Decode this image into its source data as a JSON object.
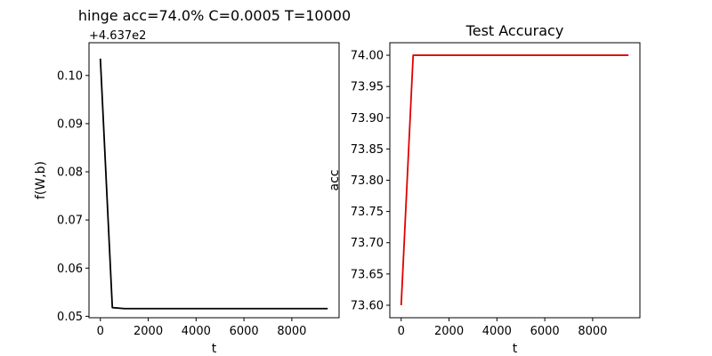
{
  "figure_title": "hinge acc=74.0% C=0.0005 T=10000",
  "chart_data": [
    {
      "type": "line",
      "title": "",
      "xlabel": "t",
      "ylabel": "f(W,b)",
      "offset_text": "+4.637e2",
      "xlim": [
        -475,
        9975
      ],
      "ylim": [
        0.0497,
        0.1068
      ],
      "xticks": [
        0,
        2000,
        4000,
        6000,
        8000
      ],
      "xtick_labels": [
        "0",
        "2000",
        "4000",
        "6000",
        "8000"
      ],
      "yticks": [
        0.05,
        0.06,
        0.07,
        0.08,
        0.09,
        0.1
      ],
      "ytick_labels": [
        "0.05",
        "0.06",
        "0.07",
        "0.08",
        "0.09",
        "0.10"
      ],
      "grid": false,
      "color": "#000000",
      "x": [
        0,
        500,
        1000,
        1500,
        2000,
        2500,
        3000,
        3500,
        4000,
        4500,
        5000,
        5500,
        6000,
        6500,
        7000,
        7500,
        8000,
        8500,
        9000,
        9500
      ],
      "y": [
        0.1035,
        0.0518,
        0.0516,
        0.0516,
        0.0516,
        0.0516,
        0.0516,
        0.0516,
        0.0516,
        0.0516,
        0.0516,
        0.0516,
        0.0516,
        0.0516,
        0.0516,
        0.0516,
        0.0516,
        0.0516,
        0.0516,
        0.0516
      ]
    },
    {
      "type": "line",
      "title": "Test Accuracy",
      "xlabel": "t",
      "ylabel": "acc",
      "xlim": [
        -475,
        9975
      ],
      "ylim": [
        73.58,
        74.02
      ],
      "xticks": [
        0,
        2000,
        4000,
        6000,
        8000
      ],
      "xtick_labels": [
        "0",
        "2000",
        "4000",
        "6000",
        "8000"
      ],
      "yticks": [
        73.6,
        73.65,
        73.7,
        73.75,
        73.8,
        73.85,
        73.9,
        73.95,
        74.0
      ],
      "ytick_labels": [
        "73.60",
        "73.65",
        "73.70",
        "73.75",
        "73.80",
        "73.85",
        "73.90",
        "73.95",
        "74.00"
      ],
      "grid": false,
      "color": "#e00000",
      "x": [
        0,
        500,
        1000,
        1500,
        2000,
        2500,
        3000,
        3500,
        4000,
        4500,
        5000,
        5500,
        6000,
        6500,
        7000,
        7500,
        8000,
        8500,
        9000,
        9500
      ],
      "y": [
        73.6,
        74.0,
        74.0,
        74.0,
        74.0,
        74.0,
        74.0,
        74.0,
        74.0,
        74.0,
        74.0,
        74.0,
        74.0,
        74.0,
        74.0,
        74.0,
        74.0,
        74.0,
        74.0,
        74.0
      ]
    }
  ]
}
